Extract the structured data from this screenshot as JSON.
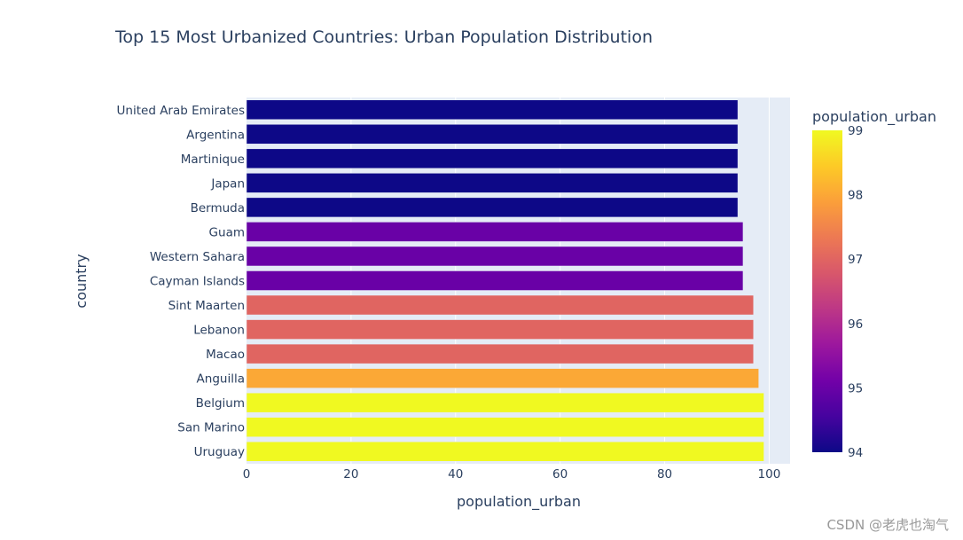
{
  "chart_data": {
    "type": "bar",
    "orientation": "horizontal",
    "title": "Top 15 Most Urbanized Countries: Urban Population Distribution",
    "xlabel": "population_urban",
    "ylabel": "country",
    "xlim": [
      0,
      104
    ],
    "x_ticks": [
      0,
      20,
      40,
      60,
      80,
      100
    ],
    "categories": [
      "United Arab Emirates",
      "Argentina",
      "Martinique",
      "Japan",
      "Bermuda",
      "Guam",
      "Western Sahara",
      "Cayman Islands",
      "Sint Maarten",
      "Lebanon",
      "Macao",
      "Anguilla",
      "Belgium",
      "San Marino",
      "Uruguay"
    ],
    "values": [
      94,
      94,
      94,
      94,
      94,
      95,
      95,
      95,
      97,
      97,
      97,
      98,
      99,
      99,
      99
    ],
    "colorbar": {
      "title": "population_urban",
      "min": 94,
      "max": 99,
      "ticks": [
        94,
        95,
        96,
        97,
        98,
        99
      ],
      "colorscale": [
        "#0d0887",
        "#46039f",
        "#7201a8",
        "#9c179e",
        "#bd3786",
        "#d8576b",
        "#ed7953",
        "#fb9f3a",
        "#fdca26",
        "#f0f921"
      ]
    },
    "grid": true,
    "plot_bgcolor": "#e5ecf6"
  },
  "watermark": "CSDN @老虎也淘气"
}
